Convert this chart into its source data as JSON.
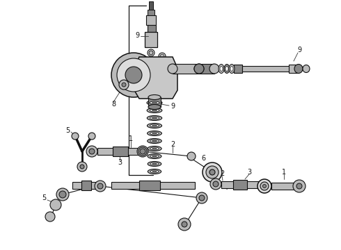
{
  "bg_color": "#ffffff",
  "line_color": "#111111",
  "fig_width": 4.9,
  "fig_height": 3.6,
  "dpi": 100,
  "gray_dark": "#555555",
  "gray_mid": "#888888",
  "gray_light": "#bbbbbb",
  "gray_fill": "#cccccc"
}
